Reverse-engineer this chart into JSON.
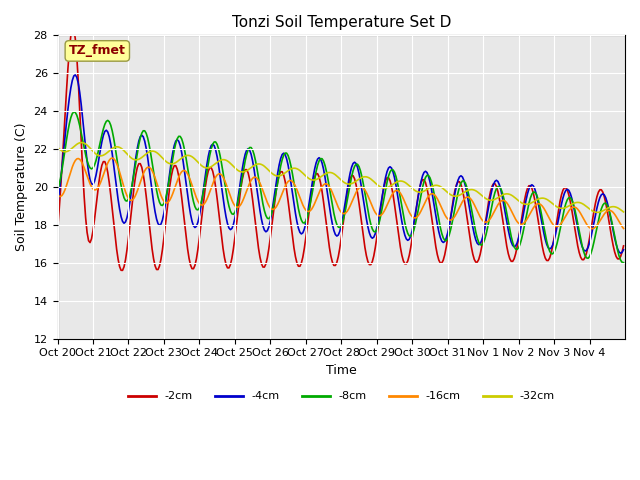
{
  "title": "Tonzi Soil Temperature Set D",
  "xlabel": "Time",
  "ylabel": "Soil Temperature (C)",
  "ylim": [
    12,
    28
  ],
  "yticks": [
    12,
    14,
    16,
    18,
    20,
    22,
    24,
    26,
    28
  ],
  "annotation": "TZ_fmet",
  "annotation_color": "#8B0000",
  "annotation_bg": "#FFFF99",
  "colors": {
    "-2cm": "#CC0000",
    "-4cm": "#0000CC",
    "-8cm": "#00AA00",
    "-16cm": "#FF8800",
    "-32cm": "#CCCC00"
  },
  "legend_labels": [
    "-2cm",
    "-4cm",
    "-8cm",
    "-16cm",
    "-32cm"
  ],
  "xtick_labels": [
    "Oct 20",
    "Oct 21",
    "Oct 22",
    "Oct 23",
    "Oct 24",
    "Oct 25",
    "Oct 26",
    "Oct 27",
    "Oct 28",
    "Oct 29",
    "Oct 30",
    "Oct 31",
    "Nov 1",
    "Nov 2",
    "Nov 3",
    "Nov 4"
  ],
  "background_color": "#E8E8E8",
  "grid_color": "#FFFFFF"
}
